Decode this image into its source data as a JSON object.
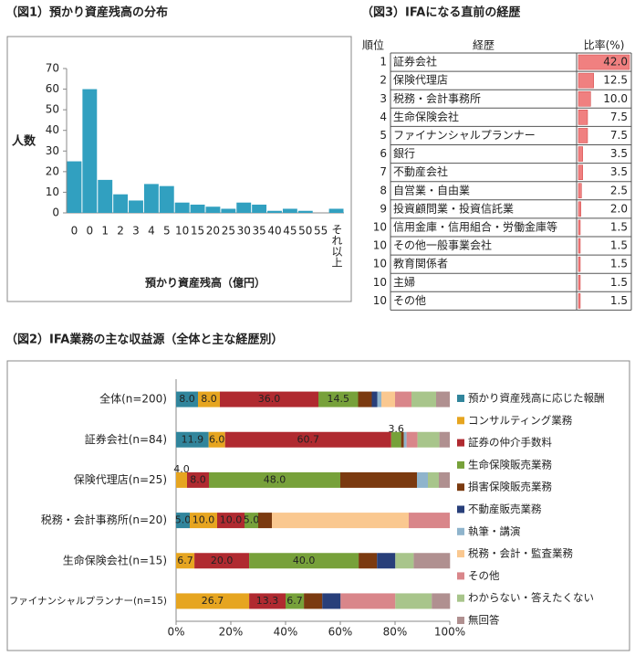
{
  "chart_data": [
    {
      "type": "histogram",
      "title": "（図1）預かり資産残高の分布",
      "y_label": "人数",
      "x_label": "預かり資産残高（億円）",
      "categories": [
        "0",
        "0",
        "1",
        "2",
        "3",
        "4",
        "5",
        "10",
        "15",
        "20",
        "25",
        "30",
        "35",
        "40",
        "45",
        "50",
        "55",
        "それ以上"
      ],
      "values": [
        25,
        60,
        16,
        9,
        6,
        14,
        13,
        5,
        4,
        3,
        2,
        5,
        4,
        1,
        2,
        1,
        0,
        2
      ],
      "color": "#31a0c0",
      "ylim": [
        0,
        70
      ],
      "yticks": [
        0,
        10,
        20,
        30,
        40,
        50,
        60,
        70
      ],
      "grid": false
    },
    {
      "type": "ranked-bar",
      "title": "（図3）IFAになる直前の経歴",
      "columns": [
        "順位",
        "経歴",
        "比率(%)"
      ],
      "ranks": [
        1,
        2,
        3,
        4,
        5,
        6,
        7,
        8,
        9,
        10,
        10,
        10,
        10,
        10
      ],
      "categories": [
        "証券会社",
        "保険代理店",
        "税務・会計事務所",
        "生命保険会社",
        "ファイナンシャルプランナー",
        "銀行",
        "不動産会社",
        "自営業・自由業",
        "投資顧問業・投資信託業",
        "信用金庫・信用組合・労働金庫等",
        "その他一般事業会社",
        "教育関係者",
        "主婦",
        "その他"
      ],
      "values": [
        42,
        12.5,
        10,
        7.5,
        7.5,
        3.5,
        3.5,
        2.5,
        2,
        1.5,
        1.5,
        1.5,
        1.5,
        1.5
      ],
      "value_labels": [
        "42.0",
        "12.5",
        "10.0",
        "7.5",
        "7.5",
        "3.5",
        "3.5",
        "2.5",
        "2.0",
        "1.5",
        "1.5",
        "1.5",
        "1.5",
        "1.5"
      ],
      "color": "#f08080",
      "xlim": [
        0,
        42
      ]
    },
    {
      "type": "stacked-bar",
      "title": "（図2）IFA業務の主な収益源（全体と主な経歴別）",
      "categories": [
        "全体(n=200)",
        "証券会社(n=84)",
        "保険代理店(n=25)",
        "税務・会計事務所(n=20)",
        "生命保険会社(n=15)",
        "ファイナンシャルプランナー(n=15)"
      ],
      "xlim": [
        0,
        100
      ],
      "xticks": [
        {
          "value": 0,
          "label": "0%"
        },
        {
          "value": 20,
          "label": "20%"
        },
        {
          "value": 40,
          "label": "40%"
        },
        {
          "value": 60,
          "label": "60%"
        },
        {
          "value": 80,
          "label": "80%"
        },
        {
          "value": 100,
          "label": "100%"
        }
      ],
      "series": [
        {
          "name": "預かり資産残高に応じた報酬",
          "color": "#31859c",
          "values": [
            8.0,
            11.9,
            0,
            5.0,
            0,
            0
          ],
          "value_labels": [
            "8.0",
            "11.9",
            null,
            "5.0",
            null,
            null
          ]
        },
        {
          "name": "コンサルティング業務",
          "color": "#e6a520",
          "values": [
            8.0,
            6.0,
            4.0,
            10.0,
            6.7,
            26.7
          ],
          "value_labels": [
            "8.0",
            "6.0",
            "4.0",
            "10.0",
            "6.7",
            "26.7"
          ]
        },
        {
          "name": "証券の仲介手数料",
          "color": "#b02a30",
          "values": [
            36.0,
            60.7,
            8.0,
            10.0,
            20.0,
            13.3
          ],
          "value_labels": [
            "36.0",
            "60.7",
            "8.0",
            "10.0",
            "20.0",
            "13.3"
          ]
        },
        {
          "name": "生命保険販売業務",
          "color": "#77a13a",
          "values": [
            14.5,
            3.6,
            48.0,
            5.0,
            40.0,
            6.7
          ],
          "value_labels": [
            "14.5",
            "3.6",
            "48.0",
            "5.0",
            "40.0",
            "6.7"
          ]
        },
        {
          "name": "損害保険販売業務",
          "color": "#7b3a10",
          "values": [
            5,
            1,
            28,
            5,
            6.7,
            6.7
          ]
        },
        {
          "name": "不動産販売業務",
          "color": "#283f7a",
          "values": [
            2,
            0,
            0,
            0,
            6.7,
            6.7
          ]
        },
        {
          "name": "執筆・講演",
          "color": "#8fb4cc",
          "values": [
            1.5,
            1,
            4,
            0,
            0,
            0
          ]
        },
        {
          "name": "税務・会計・監査業務",
          "color": "#fac890",
          "values": [
            5,
            0,
            0,
            50,
            0,
            0
          ]
        },
        {
          "name": "その他",
          "color": "#d9868a",
          "values": [
            6,
            4,
            0,
            15,
            0,
            20
          ]
        },
        {
          "name": "わからない・答えたくない",
          "color": "#a8c58b",
          "values": [
            9,
            8,
            4,
            0,
            6.7,
            13.3
          ]
        },
        {
          "name": "無回答",
          "color": "#b09090",
          "values": [
            5,
            3.8,
            4,
            0,
            13.3,
            6.7
          ]
        }
      ]
    }
  ]
}
